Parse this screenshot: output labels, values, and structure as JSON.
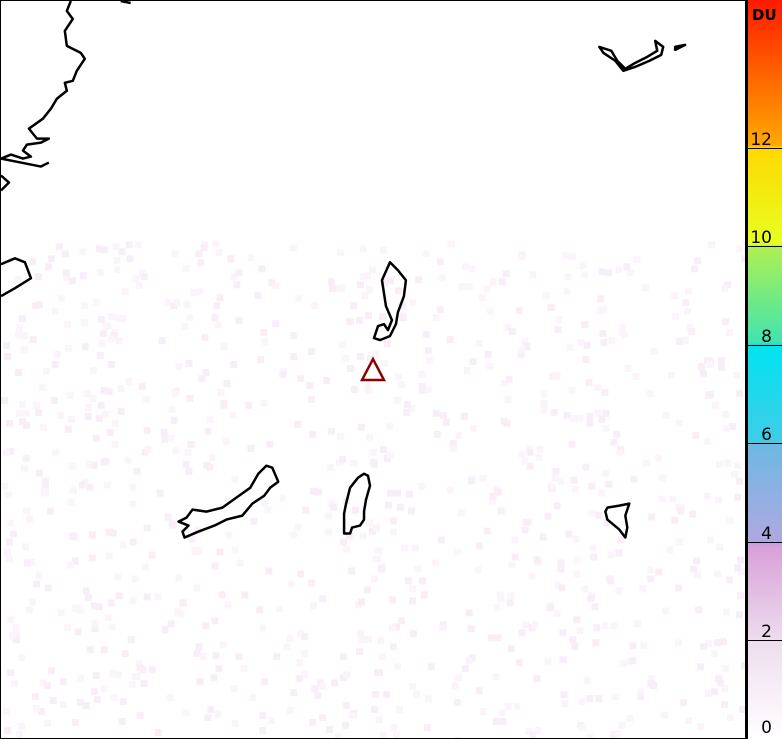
{
  "colorbar": {
    "unit": "DU",
    "min": 0,
    "max": 15,
    "ticks": [
      {
        "value": 0,
        "label": "0"
      },
      {
        "value": 2,
        "label": "2"
      },
      {
        "value": 4,
        "label": "4"
      },
      {
        "value": 6,
        "label": "6"
      },
      {
        "value": 8,
        "label": "8"
      },
      {
        "value": 10,
        "label": "10"
      },
      {
        "value": 12,
        "label": "12"
      }
    ],
    "colors": [
      {
        "value": 0,
        "color": "#ffffff"
      },
      {
        "value": 2,
        "color": "#eedcee"
      },
      {
        "value": 3.9,
        "color": "#d8a0d8"
      },
      {
        "value": 4,
        "color": "#b0a8e0"
      },
      {
        "value": 6,
        "color": "#6cb8e4"
      },
      {
        "value": 6.05,
        "color": "#40cce8"
      },
      {
        "value": 8,
        "color": "#00e4f0"
      },
      {
        "value": 8.05,
        "color": "#40e4b0"
      },
      {
        "value": 10,
        "color": "#b0f050"
      },
      {
        "value": 10.05,
        "color": "#e8ff20"
      },
      {
        "value": 12,
        "color": "#ffd800"
      },
      {
        "value": 12.05,
        "color": "#ffa800"
      },
      {
        "value": 15,
        "color": "#ff1a00"
      }
    ]
  },
  "marker": {
    "symbol": "volcano-triangle",
    "color": "#8b0000"
  }
}
